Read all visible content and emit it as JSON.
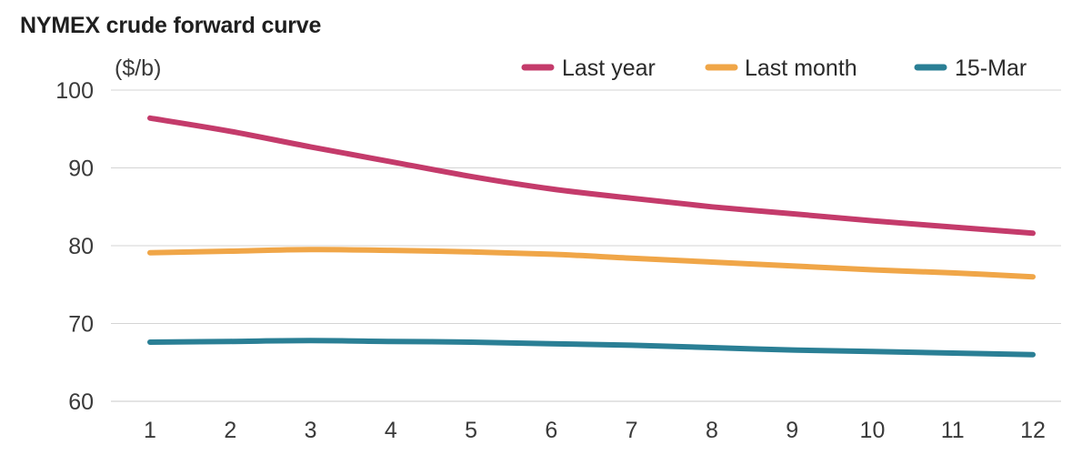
{
  "chart_data": {
    "type": "line",
    "title": "NYMEX crude forward curve",
    "ylabel": "($/b)",
    "xlabel": "",
    "x": [
      1,
      2,
      3,
      4,
      5,
      6,
      7,
      8,
      9,
      10,
      11,
      12
    ],
    "ylim": [
      60,
      100
    ],
    "yticks": [
      60,
      70,
      80,
      90,
      100
    ],
    "grid": true,
    "legend_position": "top-right",
    "series": [
      {
        "name": "Last year",
        "color": "#c43b6b",
        "values": [
          96.4,
          94.7,
          92.7,
          90.8,
          88.9,
          87.3,
          86.1,
          85.0,
          84.1,
          83.2,
          82.4,
          81.6
        ]
      },
      {
        "name": "Last month",
        "color": "#f0a648",
        "values": [
          79.1,
          79.3,
          79.5,
          79.4,
          79.2,
          78.9,
          78.4,
          77.9,
          77.4,
          76.9,
          76.5,
          76.0
        ]
      },
      {
        "name": "15-Mar",
        "color": "#2a7f95",
        "values": [
          67.6,
          67.7,
          67.8,
          67.7,
          67.6,
          67.4,
          67.2,
          66.9,
          66.6,
          66.4,
          66.2,
          66.0
        ]
      }
    ]
  }
}
